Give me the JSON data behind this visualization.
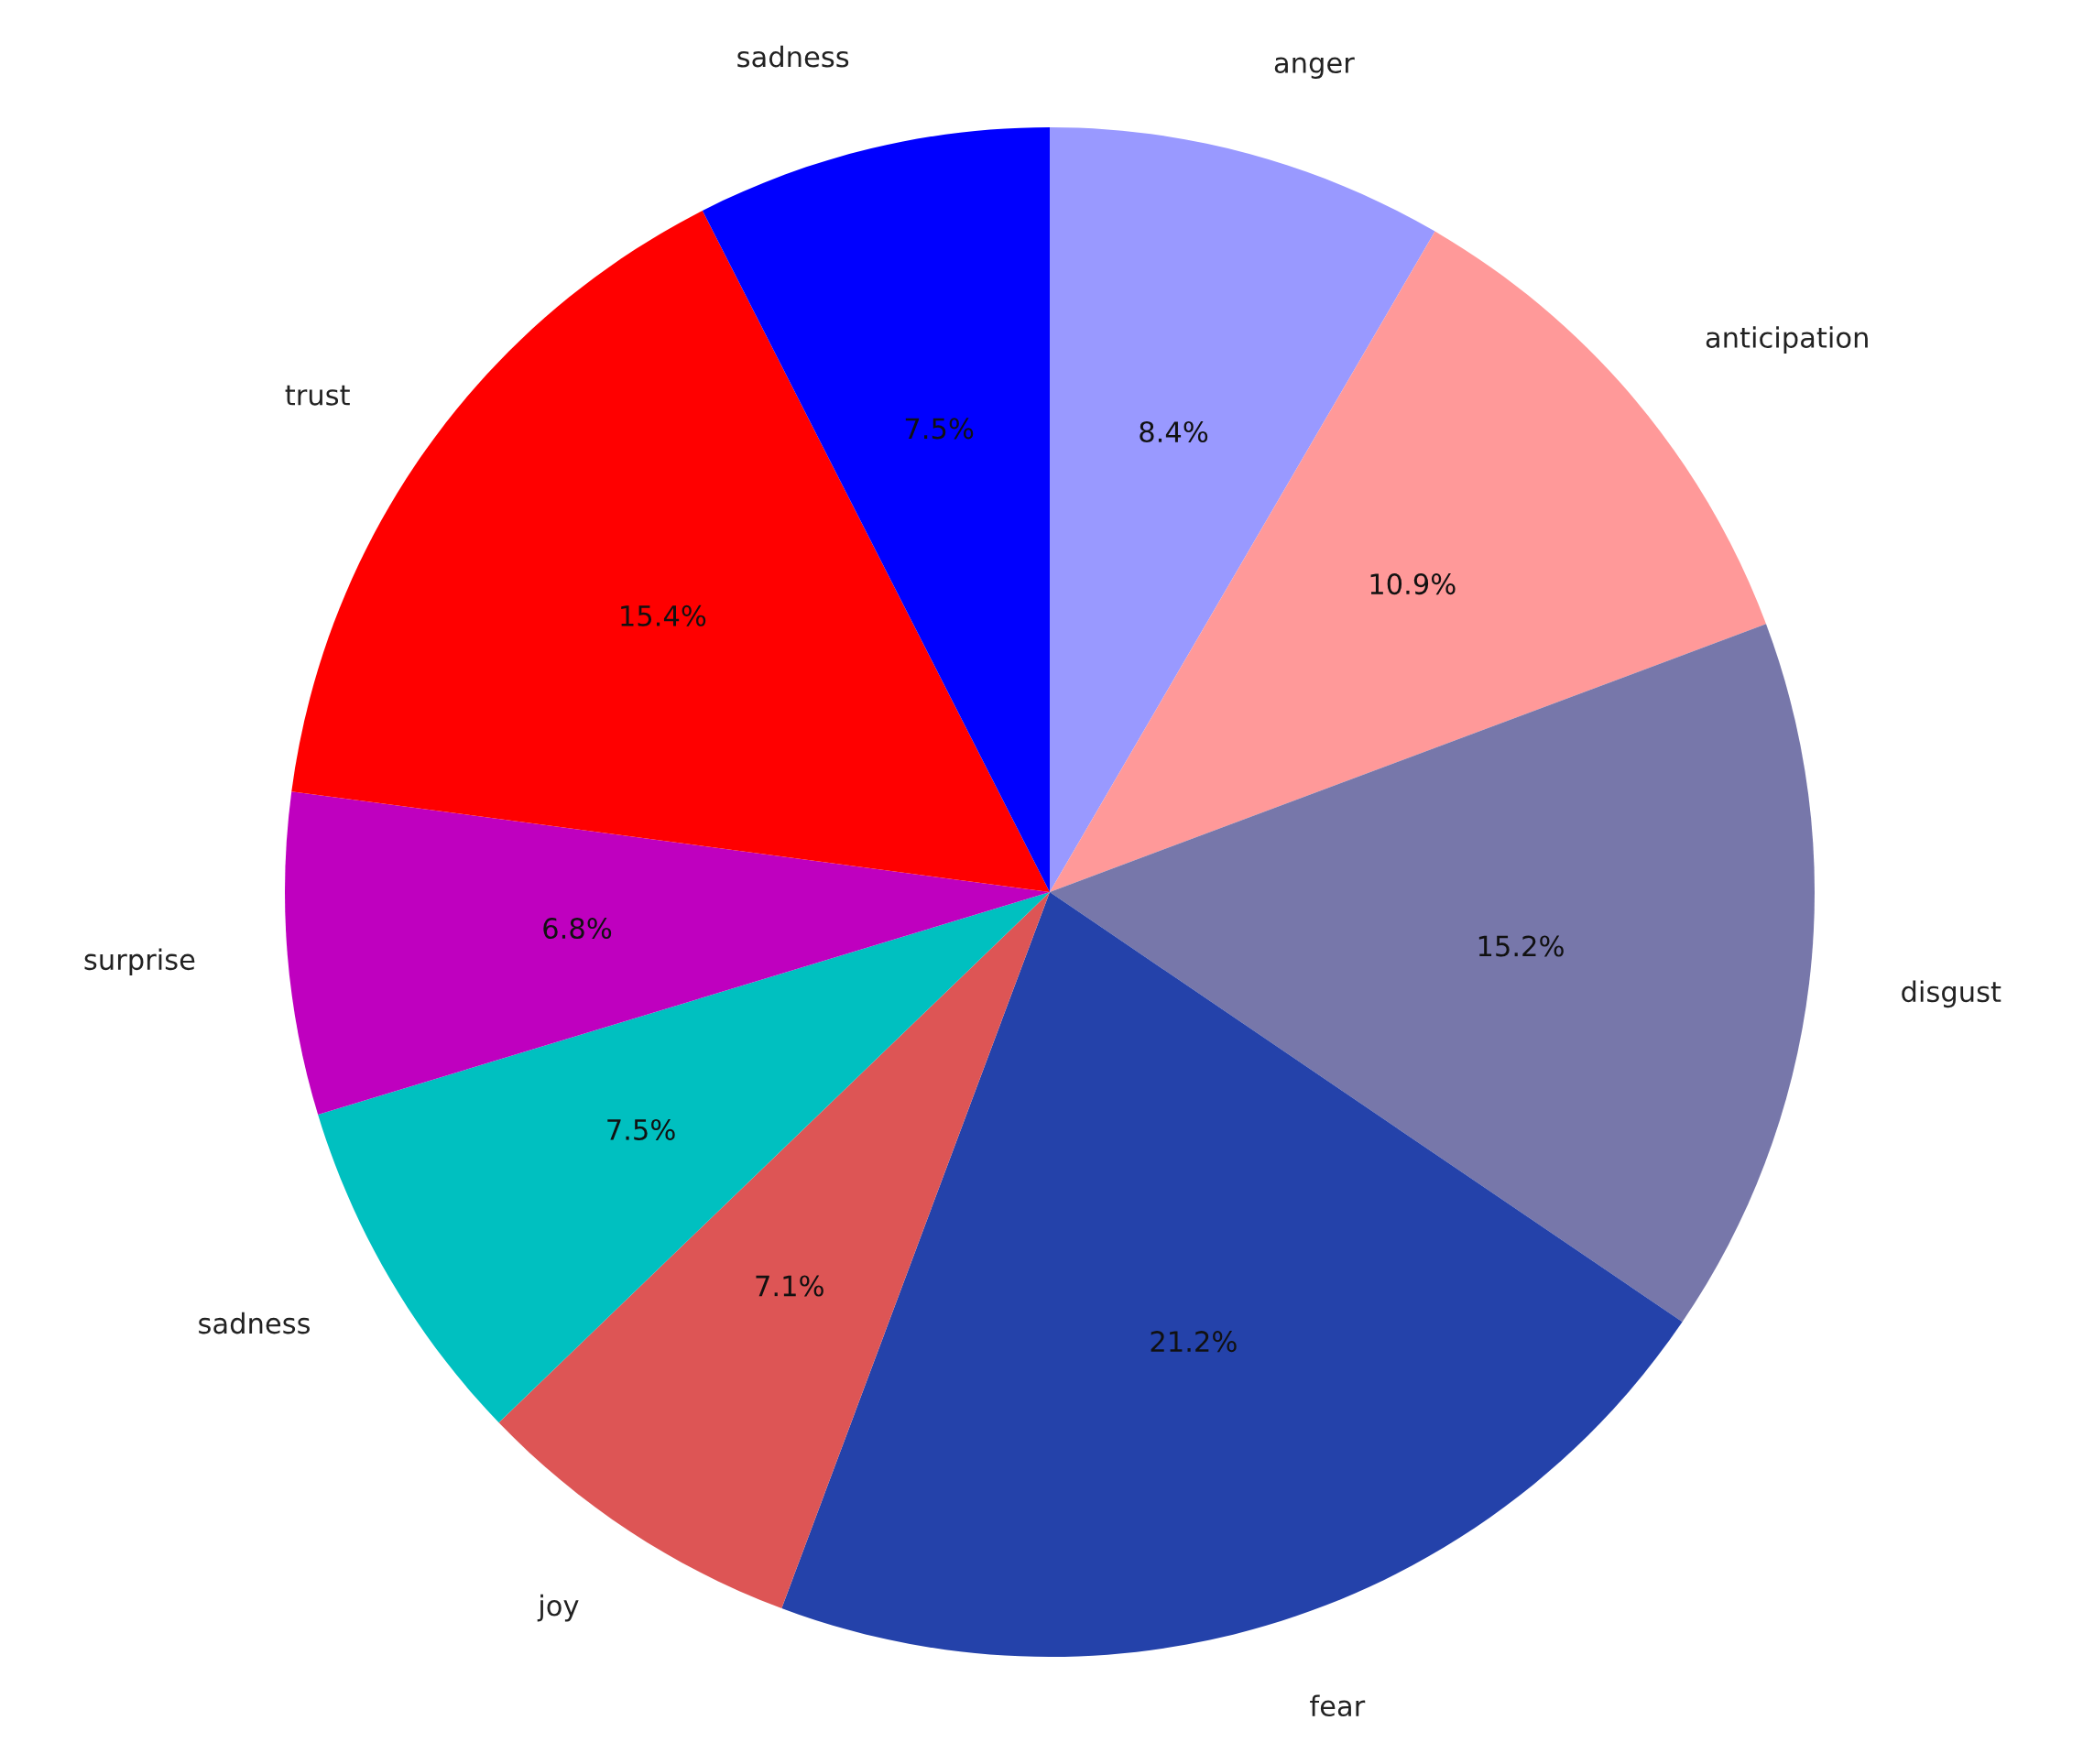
{
  "chart_data": {
    "type": "pie",
    "categories": [
      "anger",
      "anticipation",
      "disgust",
      "fear",
      "joy",
      "sadness",
      "surprise",
      "trust",
      "sadness"
    ],
    "values": [
      8.4,
      10.9,
      15.2,
      21.2,
      7.1,
      7.5,
      6.8,
      15.4,
      7.5
    ],
    "colors": [
      "#9999ff",
      "#ff9999",
      "#7777aa",
      "#2442aa",
      "#dd5555",
      "#00c0c0",
      "#bf00bf",
      "#ff0000",
      "#0000ff"
    ],
    "value_labels": [
      "8.4%",
      "10.9%",
      "15.2%",
      "21.2%",
      "7.1%",
      "7.5%",
      "6.8%",
      "15.4%",
      "7.5%"
    ]
  }
}
